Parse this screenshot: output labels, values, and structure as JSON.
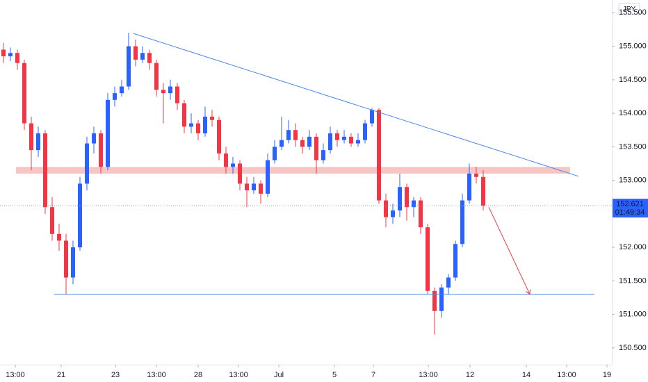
{
  "chart_data": {
    "type": "candlestick",
    "currency": "JPY",
    "up_color": "#2962ff",
    "down_color": "#f23645",
    "candles": [
      [
        154.95,
        155.05,
        154.75,
        154.85
      ],
      [
        154.85,
        154.98,
        154.78,
        154.9
      ],
      [
        154.9,
        154.95,
        154.65,
        154.75
      ],
      [
        154.75,
        154.8,
        153.75,
        153.85
      ],
      [
        153.85,
        153.95,
        153.15,
        153.45
      ],
      [
        153.45,
        153.8,
        153.35,
        153.7
      ],
      [
        153.7,
        153.75,
        152.5,
        152.6
      ],
      [
        152.6,
        152.75,
        152.1,
        152.2
      ],
      [
        152.2,
        152.35,
        151.95,
        152.1
      ],
      [
        152.1,
        152.2,
        151.3,
        151.55
      ],
      [
        151.55,
        152.1,
        151.45,
        152.0
      ],
      [
        152.0,
        153.05,
        151.95,
        152.95
      ],
      [
        152.95,
        153.65,
        152.85,
        153.55
      ],
      [
        153.55,
        153.8,
        153.4,
        153.7
      ],
      [
        153.7,
        153.75,
        153.1,
        153.2
      ],
      [
        153.2,
        154.3,
        153.15,
        154.2
      ],
      [
        154.2,
        154.4,
        154.1,
        154.3
      ],
      [
        154.3,
        154.5,
        154.25,
        154.4
      ],
      [
        154.4,
        155.2,
        154.35,
        155.0
      ],
      [
        155.0,
        155.1,
        154.7,
        154.8
      ],
      [
        154.8,
        155.0,
        154.75,
        154.9
      ],
      [
        154.9,
        154.95,
        154.65,
        154.75
      ],
      [
        154.75,
        154.8,
        154.25,
        154.35
      ],
      [
        154.35,
        154.45,
        153.85,
        154.3
      ],
      [
        154.3,
        154.5,
        154.2,
        154.4
      ],
      [
        154.4,
        154.45,
        154.05,
        154.15
      ],
      [
        154.15,
        154.2,
        153.7,
        153.8
      ],
      [
        153.8,
        154.0,
        153.7,
        153.85
      ],
      [
        153.85,
        153.9,
        153.6,
        153.7
      ],
      [
        153.7,
        154.1,
        153.65,
        153.95
      ],
      [
        153.95,
        154.05,
        153.8,
        153.9
      ],
      [
        153.9,
        153.95,
        153.3,
        153.4
      ],
      [
        153.4,
        153.5,
        153.1,
        153.2
      ],
      [
        153.2,
        153.35,
        153.1,
        153.25
      ],
      [
        153.25,
        153.3,
        152.85,
        152.95
      ],
      [
        152.95,
        153.05,
        152.6,
        152.85
      ],
      [
        152.85,
        153.05,
        152.8,
        152.95
      ],
      [
        152.95,
        153.0,
        152.65,
        152.8
      ],
      [
        152.8,
        153.4,
        152.75,
        153.3
      ],
      [
        153.3,
        153.6,
        153.25,
        153.5
      ],
      [
        153.5,
        153.95,
        153.45,
        153.6
      ],
      [
        153.6,
        153.9,
        153.55,
        153.75
      ],
      [
        153.75,
        153.85,
        153.5,
        153.6
      ],
      [
        153.6,
        153.65,
        153.4,
        153.5
      ],
      [
        153.5,
        153.75,
        153.45,
        153.65
      ],
      [
        153.65,
        153.7,
        153.1,
        153.3
      ],
      [
        153.3,
        153.55,
        153.25,
        153.45
      ],
      [
        153.45,
        153.8,
        153.4,
        153.7
      ],
      [
        153.7,
        153.75,
        153.5,
        153.6
      ],
      [
        153.6,
        153.75,
        153.55,
        153.65
      ],
      [
        153.65,
        153.7,
        153.5,
        153.55
      ],
      [
        153.55,
        153.7,
        153.5,
        153.6
      ],
      [
        153.6,
        153.9,
        153.55,
        153.85
      ],
      [
        153.85,
        154.08,
        153.8,
        154.05
      ],
      [
        154.05,
        154.08,
        152.65,
        152.7
      ],
      [
        152.7,
        152.8,
        152.3,
        152.45
      ],
      [
        152.45,
        152.65,
        152.35,
        152.55
      ],
      [
        152.55,
        153.1,
        152.45,
        152.9
      ],
      [
        152.9,
        152.95,
        152.4,
        152.6
      ],
      [
        152.6,
        152.75,
        152.45,
        152.7
      ],
      [
        152.7,
        152.75,
        152.2,
        152.3
      ],
      [
        152.3,
        152.35,
        151.3,
        151.35
      ],
      [
        151.35,
        151.4,
        150.7,
        151.05
      ],
      [
        151.05,
        151.45,
        150.95,
        151.4
      ],
      [
        151.4,
        151.6,
        151.3,
        151.55
      ],
      [
        151.55,
        152.1,
        151.5,
        152.05
      ],
      [
        152.05,
        152.8,
        152.0,
        152.7
      ],
      [
        152.7,
        153.25,
        152.65,
        153.1
      ],
      [
        153.1,
        153.2,
        152.95,
        153.05
      ],
      [
        153.05,
        153.15,
        152.55,
        152.621
      ]
    ],
    "last_price": 152.621,
    "last_price_label": "152.621",
    "countdown": "01:49:34",
    "xlim": [
      -0.5,
      87.5
    ],
    "ylim": [
      150.25,
      155.69
    ],
    "xticks": [
      {
        "value": 1.7,
        "label": "13:00"
      },
      {
        "value": 8.3,
        "label": "21"
      },
      {
        "value": 16.1,
        "label": "23"
      },
      {
        "value": 22,
        "label": "13:00"
      },
      {
        "value": 28,
        "label": "28"
      },
      {
        "value": 33.8,
        "label": "13:00"
      },
      {
        "value": 39.6,
        "label": "Jul"
      },
      {
        "value": 47.6,
        "label": "5"
      },
      {
        "value": 53.2,
        "label": "7"
      },
      {
        "value": 61.1,
        "label": "13:00"
      },
      {
        "value": 67.1,
        "label": "12"
      },
      {
        "value": 75.2,
        "label": "14"
      },
      {
        "value": 81,
        "label": "13:00"
      },
      {
        "value": 86.8,
        "label": "19"
      }
    ],
    "yticks": [
      {
        "value": 150.5,
        "label": "150.500"
      },
      {
        "value": 151,
        "label": "151.000"
      },
      {
        "value": 151.5,
        "label": "151.500"
      },
      {
        "value": 152,
        "label": "152.000"
      },
      {
        "value": 153,
        "label": "153.000"
      },
      {
        "value": 153.5,
        "label": "153.500"
      },
      {
        "value": 154,
        "label": "154.000"
      },
      {
        "value": 154.5,
        "label": "154.500"
      },
      {
        "value": 155,
        "label": "155.000"
      },
      {
        "value": 155.5,
        "label": "155.500"
      }
    ],
    "trendline": {
      "color": "#4a86e8",
      "x": [
        18.7,
        82.7
      ],
      "y": [
        155.19,
        153.06
      ]
    },
    "support_line": {
      "color": "#4a86e8",
      "x": [
        7.3,
        85
      ],
      "y": 151.3
    },
    "resistance_zone": {
      "color": "#f8c5c5",
      "x": [
        1.8,
        81.5
      ],
      "y": [
        153.1,
        153.2
      ]
    },
    "projection_arrow": {
      "color": "#f23645",
      "x": [
        69.8,
        75.7
      ],
      "y": [
        152.6,
        151.3
      ]
    }
  }
}
